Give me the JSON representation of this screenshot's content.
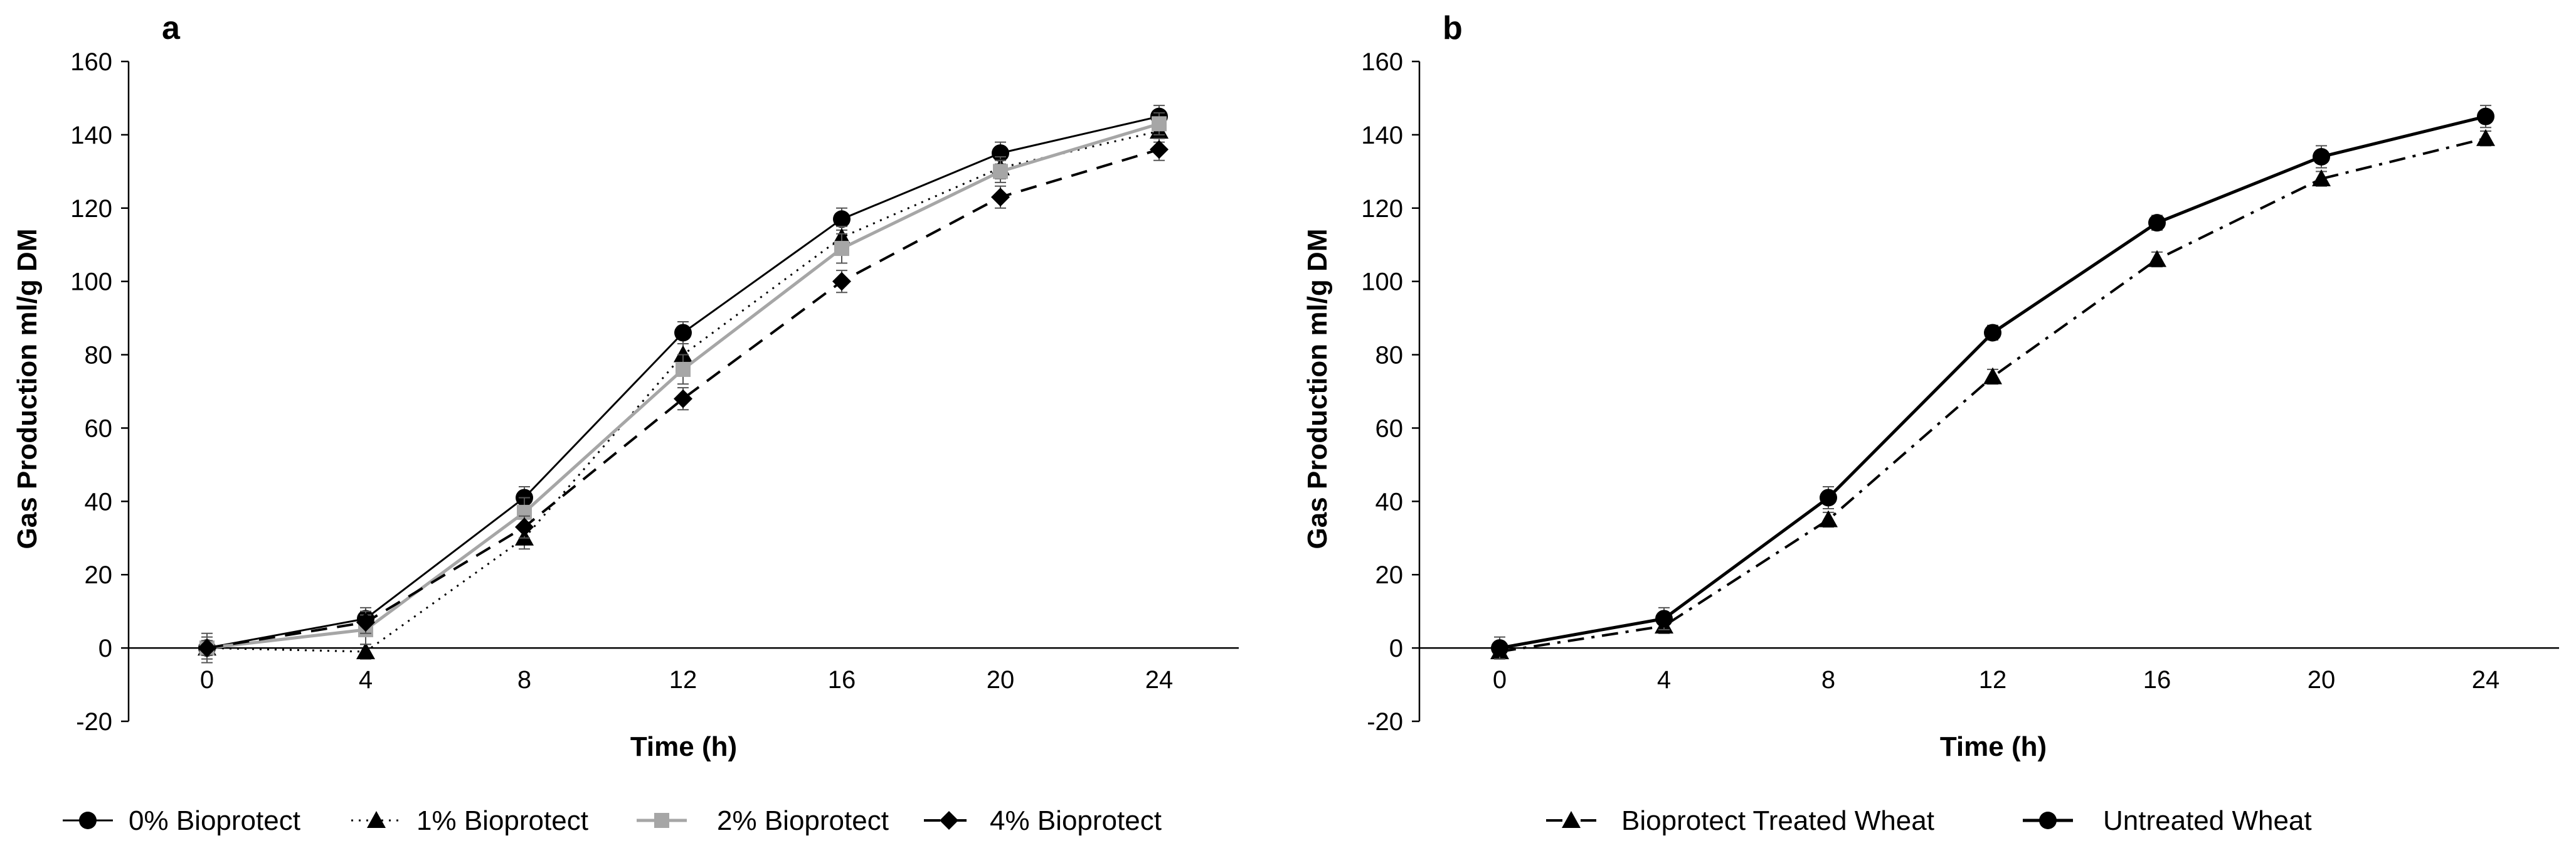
{
  "chart_data": [
    {
      "panel": "a",
      "type": "line",
      "xlabel": "Time (h)",
      "ylabel": "Gas Production  ml/g DM",
      "ylim": [
        -20,
        160
      ],
      "yticks": [
        -20,
        0,
        20,
        40,
        60,
        80,
        100,
        120,
        140,
        160
      ],
      "x": [
        0,
        4,
        8,
        12,
        16,
        20,
        24
      ],
      "series": [
        {
          "name": "0% Bioprotect",
          "values": [
            0,
            8,
            41,
            86,
            117,
            135,
            145
          ],
          "errors": [
            3,
            3,
            3,
            3,
            3,
            3,
            3
          ],
          "color": "#000000",
          "dash": "solid",
          "marker": "circle",
          "stroke_width": 3
        },
        {
          "name": "1% Bioprotect",
          "values": [
            0,
            -1,
            30,
            80,
            112,
            131,
            141
          ],
          "errors": [
            2,
            2,
            3,
            3,
            3,
            3,
            3
          ],
          "color": "#000000",
          "dash": "dotted",
          "marker": "triangle",
          "stroke_width": 3
        },
        {
          "name": "2% Bioprotect",
          "values": [
            0,
            5,
            37,
            76,
            109,
            130,
            143
          ],
          "errors": [
            4,
            4,
            4,
            4,
            4,
            3,
            3
          ],
          "color": "#a6a6a6",
          "dash": "solid",
          "marker": "square",
          "stroke_width": 5
        },
        {
          "name": "4% Bioprotect",
          "values": [
            0,
            7,
            33,
            68,
            100,
            123,
            136
          ],
          "errors": [
            2,
            3,
            3,
            3,
            3,
            3,
            3
          ],
          "color": "#000000",
          "dash": "dashed",
          "marker": "diamond",
          "stroke_width": 4
        }
      ]
    },
    {
      "panel": "b",
      "type": "line",
      "xlabel": "Time (h)",
      "ylabel": "Gas Production  ml/g DM",
      "ylim": [
        -20,
        160
      ],
      "yticks": [
        -20,
        0,
        20,
        40,
        60,
        80,
        100,
        120,
        140,
        160
      ],
      "x": [
        0,
        4,
        8,
        12,
        16,
        20,
        24
      ],
      "series": [
        {
          "name": "Bioprotect Treated Wheat",
          "values": [
            -1,
            6,
            35,
            74,
            106,
            128,
            139
          ],
          "errors": [
            2,
            2,
            2,
            2,
            2,
            2,
            2
          ],
          "color": "#000000",
          "dash": "dashdot",
          "marker": "triangle",
          "stroke_width": 4
        },
        {
          "name": "Untreated Wheat",
          "values": [
            0,
            8,
            41,
            86,
            116,
            134,
            145
          ],
          "errors": [
            3,
            3,
            3,
            2,
            2,
            3,
            3
          ],
          "color": "#000000",
          "dash": "solid",
          "marker": "circle",
          "stroke_width": 5
        }
      ]
    }
  ]
}
